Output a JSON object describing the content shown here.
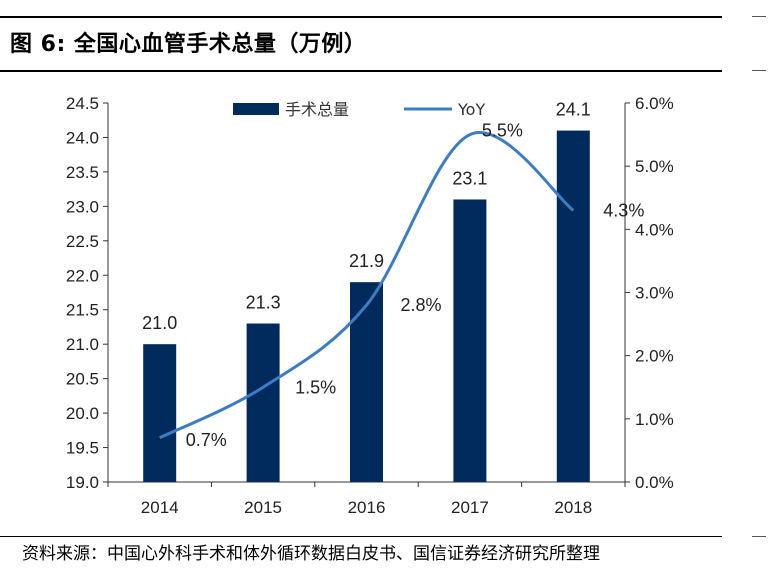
{
  "header": {
    "title": "图 6:  全国心血管手术总量（万例）"
  },
  "footer": {
    "source": "资料来源：中国心外科手术和体外循环数据白皮书、国信证券经济研究所整理"
  },
  "colors": {
    "bar": "#002B5C",
    "line": "#3B7DC4",
    "axis": "#333333"
  },
  "chart_data": {
    "type": "bar",
    "categories": [
      "2014",
      "2015",
      "2016",
      "2017",
      "2018"
    ],
    "series": [
      {
        "name": "手术总量",
        "type": "bar",
        "axis": "left",
        "values": [
          21.0,
          21.3,
          21.9,
          23.1,
          24.1
        ],
        "labels": [
          "21.0",
          "21.3",
          "21.9",
          "23.1",
          "24.1"
        ]
      },
      {
        "name": "YoY",
        "type": "line",
        "axis": "right",
        "values": [
          0.7,
          1.5,
          2.8,
          5.5,
          4.3
        ],
        "labels": [
          "0.7%",
          "1.5%",
          "2.8%",
          "5.5%",
          "4.3%"
        ]
      }
    ],
    "y_left": {
      "min": 19.0,
      "max": 24.5,
      "step": 0.5,
      "ticks": [
        "19.0",
        "19.5",
        "20.0",
        "20.5",
        "21.0",
        "21.5",
        "22.0",
        "22.5",
        "23.0",
        "23.5",
        "24.0",
        "24.5"
      ]
    },
    "y_right": {
      "min": 0,
      "max": 6.0,
      "step": 1.0,
      "ticks": [
        "0.0%",
        "1.0%",
        "2.0%",
        "3.0%",
        "4.0%",
        "5.0%",
        "6.0%"
      ]
    },
    "legend": {
      "placement": "top-center"
    },
    "grid": false
  }
}
